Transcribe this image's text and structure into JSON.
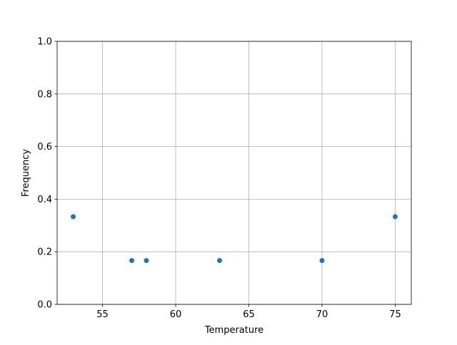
{
  "chart_data": {
    "type": "scatter",
    "title": "",
    "xlabel": "Temperature",
    "ylabel": "Frequency",
    "xlim": [
      51.9,
      76.1
    ],
    "ylim": [
      0,
      1
    ],
    "xticks": [
      55,
      60,
      65,
      70,
      75
    ],
    "yticks": [
      0.0,
      0.2,
      0.4,
      0.6,
      0.8,
      1.0
    ],
    "xtick_labels": [
      "55",
      "60",
      "65",
      "70",
      "75"
    ],
    "ytick_labels": [
      "0.0",
      "0.2",
      "0.4",
      "0.6",
      "0.8",
      "1.0"
    ],
    "grid": true,
    "points": [
      {
        "x": 53,
        "y": 0.3333
      },
      {
        "x": 57,
        "y": 0.1667
      },
      {
        "x": 58,
        "y": 0.1667
      },
      {
        "x": 63,
        "y": 0.1667
      },
      {
        "x": 70,
        "y": 0.1667
      },
      {
        "x": 75,
        "y": 0.3333
      }
    ],
    "color": "#1f77b4"
  }
}
